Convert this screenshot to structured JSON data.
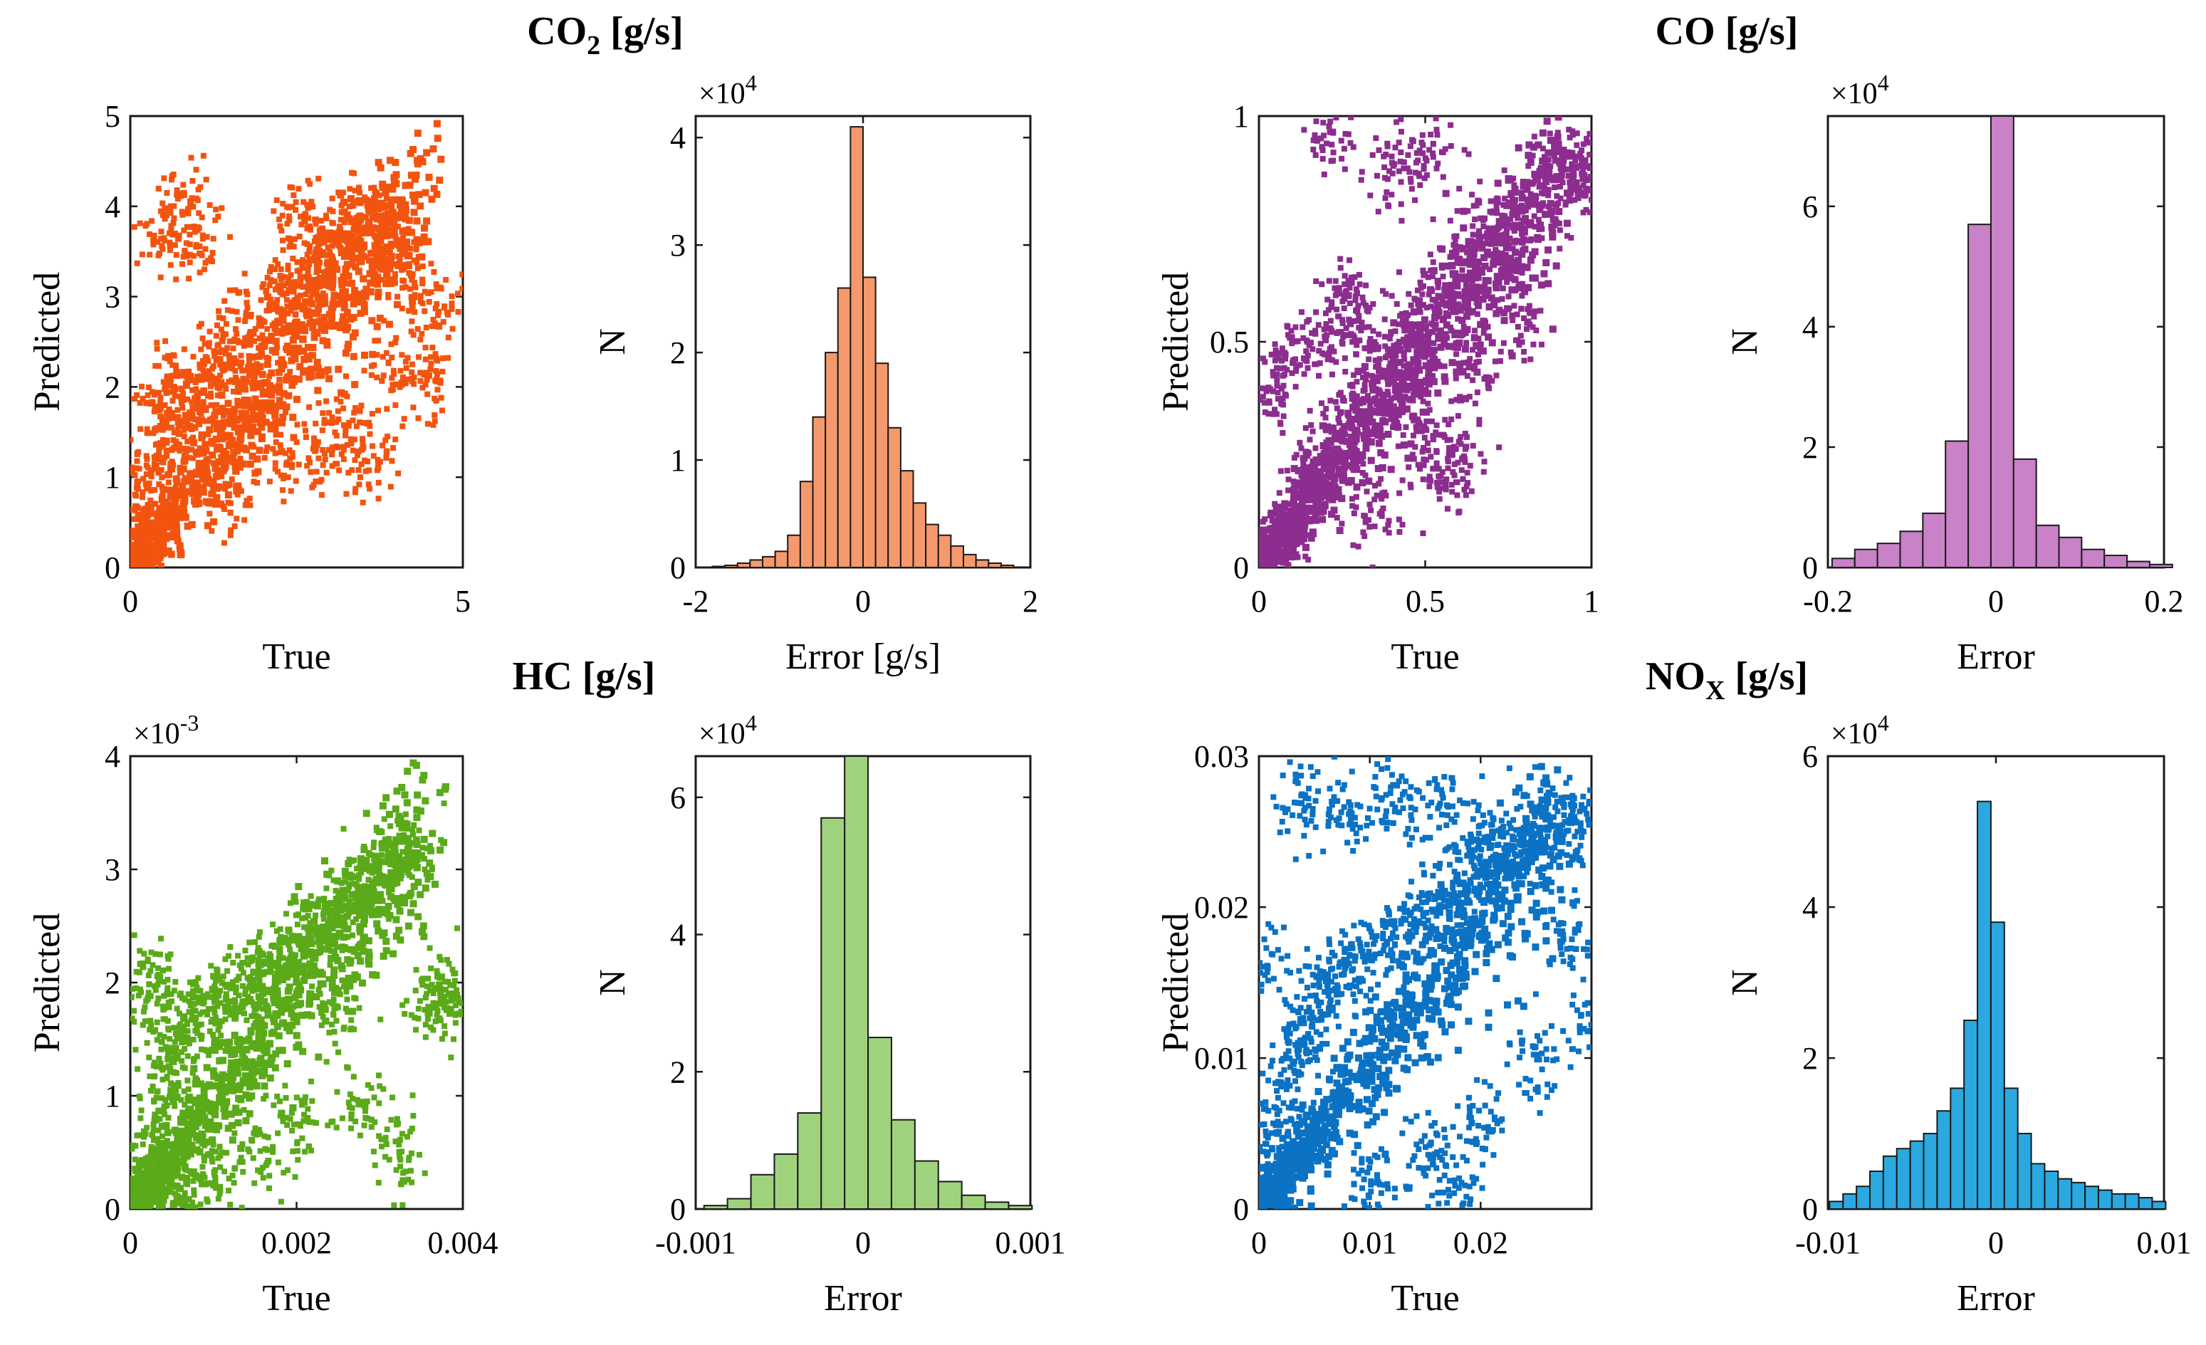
{
  "chart_data": [
    {
      "group": "co2",
      "title": "CO",
      "title_sub": "2",
      "title_suffix": " [g/s]",
      "scatter": {
        "type": "scatter",
        "color": "#f25410",
        "xlabel": "True",
        "ylabel": "Predicted",
        "xlim": [
          0,
          5
        ],
        "ylim": [
          0,
          5
        ],
        "xticks": [
          0,
          5
        ],
        "xtick_labels": [
          "0",
          "5"
        ],
        "yticks": [
          0,
          1,
          2,
          3,
          4,
          5
        ],
        "ytick_labels": [
          "0",
          "1",
          "2",
          "3",
          "4",
          "5"
        ],
        "multiplier": "",
        "points": [
          [
            0.05,
            0.05
          ],
          [
            0.1,
            0.3
          ],
          [
            0.2,
            0.5
          ],
          [
            0.3,
            0.9
          ],
          [
            0.4,
            1.2
          ],
          [
            0.5,
            1.6
          ],
          [
            0.6,
            1.9
          ],
          [
            0.7,
            2.1
          ],
          [
            0.8,
            1.4
          ],
          [
            1.0,
            1.8
          ],
          [
            1.2,
            2.0
          ],
          [
            1.4,
            2.3
          ],
          [
            1.6,
            2.6
          ],
          [
            1.8,
            2.2
          ],
          [
            2.0,
            2.7
          ],
          [
            2.2,
            3.0
          ],
          [
            2.4,
            2.8
          ],
          [
            2.6,
            3.1
          ],
          [
            2.8,
            3.4
          ],
          [
            3.0,
            3.6
          ],
          [
            3.2,
            3.7
          ],
          [
            3.4,
            3.8
          ],
          [
            3.6,
            3.9
          ],
          [
            3.8,
            3.7
          ],
          [
            4.0,
            3.5
          ],
          [
            4.2,
            3.3
          ],
          [
            4.5,
            2.1
          ],
          [
            4.6,
            2.9
          ],
          [
            3.3,
            1.6
          ],
          [
            2.9,
            1.3
          ],
          [
            2.3,
            1.2
          ],
          [
            1.5,
            0.8
          ],
          [
            1.0,
            3.6
          ],
          [
            0.5,
            3.7
          ],
          [
            0.8,
            4.0
          ],
          [
            2.5,
            3.9
          ],
          [
            4.0,
            2.2
          ],
          [
            3.6,
            1.2
          ]
        ]
      },
      "histogram": {
        "type": "bar",
        "color": "#f5996c",
        "xlabel": "Error [g/s]",
        "ylabel": "N",
        "xlim": [
          -2,
          2
        ],
        "ylim": [
          0,
          4.2
        ],
        "xticks": [
          -2,
          0,
          2
        ],
        "xtick_labels": [
          "-2",
          "0",
          "2"
        ],
        "yticks": [
          0,
          1,
          2,
          3,
          4
        ],
        "ytick_labels": [
          "0",
          "1",
          "2",
          "3",
          "4"
        ],
        "multiplier": "×10",
        "multiplier_exp": "4",
        "bin_edges": [
          -1.8,
          -1.65,
          -1.5,
          -1.35,
          -1.2,
          -1.05,
          -0.9,
          -0.75,
          -0.6,
          -0.45,
          -0.3,
          -0.15,
          0.0,
          0.15,
          0.3,
          0.45,
          0.6,
          0.75,
          0.9,
          1.05,
          1.2,
          1.35,
          1.5,
          1.65,
          1.8
        ],
        "counts": [
          0.01,
          0.02,
          0.04,
          0.07,
          0.1,
          0.15,
          0.3,
          0.8,
          1.4,
          2.0,
          2.6,
          4.1,
          2.7,
          1.9,
          1.3,
          0.9,
          0.6,
          0.4,
          0.3,
          0.2,
          0.12,
          0.07,
          0.04,
          0.02
        ]
      }
    },
    {
      "group": "co",
      "title": "CO",
      "title_sub": "",
      "title_suffix": " [g/s]",
      "scatter": {
        "type": "scatter",
        "color": "#8c2d8f",
        "xlabel": "True",
        "ylabel": "Predicted",
        "xlim": [
          0,
          1
        ],
        "ylim": [
          0,
          1
        ],
        "xticks": [
          0,
          0.5,
          1
        ],
        "xtick_labels": [
          "0",
          "0.5",
          "1"
        ],
        "yticks": [
          0,
          0.5,
          1
        ],
        "ytick_labels": [
          "0",
          "0.5",
          "1"
        ],
        "multiplier": "",
        "points": [
          [
            0.01,
            0.01
          ],
          [
            0.05,
            0.05
          ],
          [
            0.1,
            0.1
          ],
          [
            0.15,
            0.2
          ],
          [
            0.2,
            0.25
          ],
          [
            0.25,
            0.3
          ],
          [
            0.3,
            0.35
          ],
          [
            0.35,
            0.4
          ],
          [
            0.4,
            0.45
          ],
          [
            0.45,
            0.5
          ],
          [
            0.5,
            0.55
          ],
          [
            0.55,
            0.6
          ],
          [
            0.6,
            0.65
          ],
          [
            0.65,
            0.7
          ],
          [
            0.7,
            0.72
          ],
          [
            0.75,
            0.76
          ],
          [
            0.8,
            0.8
          ],
          [
            0.85,
            0.84
          ],
          [
            0.9,
            0.88
          ],
          [
            0.95,
            0.9
          ],
          [
            0.99,
            0.85
          ],
          [
            0.5,
            0.3
          ],
          [
            0.55,
            0.2
          ],
          [
            0.6,
            0.25
          ],
          [
            0.35,
            0.12
          ],
          [
            0.3,
            0.55
          ],
          [
            0.25,
            0.6
          ],
          [
            0.22,
            0.95
          ],
          [
            0.4,
            0.88
          ],
          [
            0.5,
            0.9
          ],
          [
            0.65,
            0.45
          ],
          [
            0.78,
            0.55
          ],
          [
            0.2,
            0.5
          ],
          [
            0.1,
            0.45
          ],
          [
            0.05,
            0.4
          ],
          [
            0.98,
            0.9
          ]
        ]
      },
      "histogram": {
        "type": "bar",
        "color": "#c981c7",
        "xlabel": "Error",
        "ylabel": "N",
        "xlim": [
          -0.2,
          0.2
        ],
        "ylim": [
          0,
          7.5
        ],
        "xticks": [
          -0.2,
          0,
          0.2
        ],
        "xtick_labels": [
          "-0.2",
          "0",
          "0.2"
        ],
        "yticks": [
          0,
          2,
          4,
          6
        ],
        "ytick_labels": [
          "0",
          "2",
          "4",
          "6"
        ],
        "multiplier": "×10",
        "multiplier_exp": "4",
        "bin_edges": [
          -0.195,
          -0.168,
          -0.141,
          -0.114,
          -0.087,
          -0.06,
          -0.033,
          -0.006,
          0.021,
          0.048,
          0.075,
          0.102,
          0.129,
          0.156,
          0.183,
          0.21
        ],
        "counts": [
          0.15,
          0.3,
          0.4,
          0.6,
          0.9,
          2.1,
          5.7,
          7.5,
          1.8,
          0.7,
          0.5,
          0.3,
          0.2,
          0.1,
          0.05
        ]
      }
    },
    {
      "group": "hc",
      "title": "HC",
      "title_sub": "",
      "title_suffix": " [g/s]",
      "scatter": {
        "type": "scatter",
        "color": "#5aaa19",
        "xlabel": "True",
        "ylabel": "Predicted",
        "xlim": [
          0,
          0.004
        ],
        "ylim": [
          0,
          0.004
        ],
        "xticks": [
          0,
          0.002,
          0.004
        ],
        "xtick_labels": [
          "0",
          "0.002",
          "0.004"
        ],
        "yticks": [
          0,
          0.001,
          0.002,
          0.003,
          0.004
        ],
        "ytick_labels": [
          "0",
          "1",
          "2",
          "3",
          "4"
        ],
        "multiplier": "×10",
        "multiplier_exp": "-3",
        "points": [
          [
            0.0001,
            0.0001
          ],
          [
            0.0002,
            0.0004
          ],
          [
            0.0003,
            0.0008
          ],
          [
            0.0004,
            0.0012
          ],
          [
            0.0005,
            0.0014
          ],
          [
            0.0006,
            0.0016
          ],
          [
            0.0008,
            0.0017
          ],
          [
            0.001,
            0.0018
          ],
          [
            0.0012,
            0.0019
          ],
          [
            0.0014,
            0.002
          ],
          [
            0.0016,
            0.0021
          ],
          [
            0.0018,
            0.0022
          ],
          [
            0.002,
            0.0023
          ],
          [
            0.0022,
            0.0024
          ],
          [
            0.0024,
            0.0025
          ],
          [
            0.0026,
            0.0027
          ],
          [
            0.0028,
            0.0029
          ],
          [
            0.003,
            0.003
          ],
          [
            0.0032,
            0.0031
          ],
          [
            0.0034,
            0.0032
          ],
          [
            0.0036,
            0.0018
          ],
          [
            0.0038,
            0.0019
          ],
          [
            0.004,
            0.0018
          ],
          [
            0.0025,
            0.0017
          ],
          [
            0.0015,
            0.0005
          ],
          [
            0.001,
            0.0003
          ],
          [
            0.0005,
            0.0002
          ],
          [
            0.0007,
            0.0001
          ],
          [
            0.002,
            0.0008
          ],
          [
            0.0028,
            0.0009
          ],
          [
            0.0032,
            0.0005
          ],
          [
            0.0001,
            0.0019
          ],
          [
            0.0003,
            0.002
          ]
        ]
      },
      "histogram": {
        "type": "bar",
        "color": "#9fd27d",
        "xlabel": "Error",
        "ylabel": "N",
        "xlim": [
          -0.001,
          0.001
        ],
        "ylim": [
          0,
          6.6
        ],
        "xticks": [
          -0.001,
          0,
          0.001
        ],
        "xtick_labels": [
          "-0.001",
          "0",
          "0.001"
        ],
        "yticks": [
          0,
          2,
          4,
          6
        ],
        "ytick_labels": [
          "0",
          "2",
          "4",
          "6"
        ],
        "multiplier": "×10",
        "multiplier_exp": "4",
        "bin_edges": [
          -0.00095,
          -0.00081,
          -0.00067,
          -0.00053,
          -0.00039,
          -0.00025,
          -0.00011,
          3e-05,
          0.00017,
          0.00031,
          0.00045,
          0.00059,
          0.00073,
          0.00087,
          0.00101
        ],
        "counts": [
          0.05,
          0.15,
          0.5,
          0.8,
          1.4,
          5.7,
          6.6,
          2.5,
          1.3,
          0.7,
          0.4,
          0.2,
          0.1,
          0.05
        ]
      }
    },
    {
      "group": "nox",
      "title": "NO",
      "title_sub": "X",
      "title_suffix": " [g/s]",
      "scatter": {
        "type": "scatter",
        "color": "#0b72c4",
        "xlabel": "True",
        "ylabel": "Predicted",
        "xlim": [
          0,
          0.03
        ],
        "ylim": [
          0,
          0.03
        ],
        "xticks": [
          0,
          0.01,
          0.02
        ],
        "xtick_labels": [
          "0",
          "0.01",
          "0.02"
        ],
        "yticks": [
          0,
          0.01,
          0.02,
          0.03
        ],
        "ytick_labels": [
          "0",
          "0.01",
          "0.02",
          "0.03"
        ],
        "multiplier": "",
        "points": [
          [
            0.0005,
            0.0005
          ],
          [
            0.001,
            0.003
          ],
          [
            0.002,
            0.006
          ],
          [
            0.003,
            0.009
          ],
          [
            0.004,
            0.011
          ],
          [
            0.005,
            0.013
          ],
          [
            0.006,
            0.015
          ],
          [
            0.008,
            0.016
          ],
          [
            0.01,
            0.017
          ],
          [
            0.012,
            0.018
          ],
          [
            0.014,
            0.019
          ],
          [
            0.016,
            0.02
          ],
          [
            0.018,
            0.021
          ],
          [
            0.02,
            0.022
          ],
          [
            0.022,
            0.023
          ],
          [
            0.024,
            0.024
          ],
          [
            0.026,
            0.025
          ],
          [
            0.028,
            0.026
          ],
          [
            0.03,
            0.025
          ],
          [
            0.004,
            0.027
          ],
          [
            0.008,
            0.026
          ],
          [
            0.012,
            0.027
          ],
          [
            0.016,
            0.026
          ],
          [
            0.02,
            0.025
          ],
          [
            0.01,
            0.002
          ],
          [
            0.015,
            0.004
          ],
          [
            0.02,
            0.006
          ],
          [
            0.025,
            0.01
          ],
          [
            0.03,
            0.012
          ],
          [
            0.018,
            0.001
          ],
          [
            0.028,
            0.018
          ],
          [
            0.0005,
            0.016
          ]
        ]
      },
      "histogram": {
        "type": "bar",
        "color": "#2aa8df",
        "xlabel": "Error",
        "ylabel": "N",
        "xlim": [
          -0.01,
          0.01
        ],
        "ylim": [
          0,
          6
        ],
        "xticks": [
          -0.01,
          0,
          0.01
        ],
        "xtick_labels": [
          "-0.01",
          "0",
          "0.01"
        ],
        "yticks": [
          0,
          2,
          4,
          6
        ],
        "ytick_labels": [
          "0",
          "2",
          "4",
          "6"
        ],
        "multiplier": "×10",
        "multiplier_exp": "4",
        "bin_edges": [
          -0.0099,
          -0.0091,
          -0.0083,
          -0.0075,
          -0.0067,
          -0.0059,
          -0.0051,
          -0.0043,
          -0.0035,
          -0.0027,
          -0.0019,
          -0.0011,
          -0.0003,
          0.0005,
          0.0013,
          0.0021,
          0.0029,
          0.0037,
          0.0045,
          0.0053,
          0.0061,
          0.0069,
          0.0077,
          0.0085,
          0.0093,
          0.0101
        ],
        "counts": [
          0.1,
          0.2,
          0.3,
          0.5,
          0.7,
          0.8,
          0.9,
          1.0,
          1.3,
          1.6,
          2.5,
          5.4,
          3.8,
          1.6,
          1.0,
          0.6,
          0.5,
          0.4,
          0.35,
          0.3,
          0.25,
          0.2,
          0.2,
          0.15,
          0.1
        ]
      }
    }
  ]
}
